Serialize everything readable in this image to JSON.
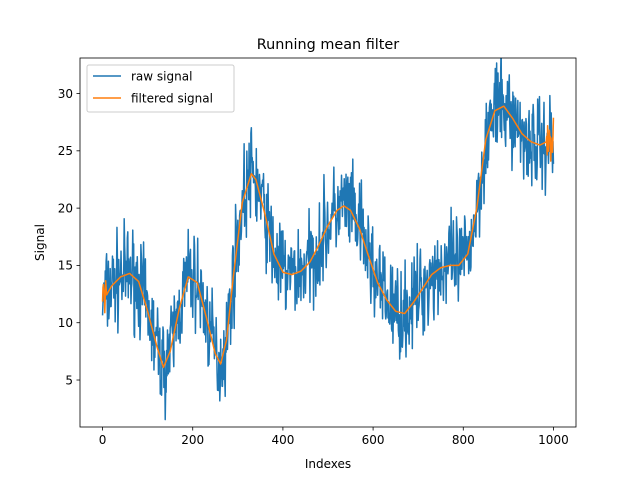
{
  "chart_data": {
    "type": "line",
    "title": "Running mean filter",
    "xlabel": "Indexes",
    "ylabel": "Signal",
    "xlim": [
      -50,
      1050
    ],
    "ylim": [
      0.9,
      33.1
    ],
    "xticks": [
      0,
      200,
      400,
      600,
      800,
      1000
    ],
    "yticks": [
      5,
      10,
      15,
      20,
      25,
      30
    ],
    "legend": {
      "placement": "top-left"
    },
    "grid": false,
    "series": [
      {
        "name": "raw signal",
        "color": "#1f77b4",
        "noise_amplitude": 2.0,
        "x": [
          0,
          20,
          40,
          60,
          80,
          100,
          120,
          135,
          150,
          170,
          190,
          210,
          230,
          250,
          262,
          275,
          290,
          310,
          330,
          340,
          360,
          380,
          400,
          420,
          440,
          460,
          480,
          500,
          520,
          535,
          550,
          570,
          590,
          610,
          630,
          650,
          670,
          690,
          710,
          730,
          750,
          770,
          790,
          810,
          830,
          850,
          870,
          890,
          910,
          930,
          950,
          970,
          985,
          995
        ],
        "y": [
          11.8,
          13.2,
          14.0,
          14.3,
          13.6,
          11.0,
          8.0,
          6.1,
          7.5,
          11.2,
          14.0,
          13.5,
          10.5,
          7.3,
          6.4,
          8.5,
          14.0,
          20.5,
          23.0,
          22.5,
          19.5,
          16.0,
          14.4,
          14.2,
          14.5,
          15.3,
          16.8,
          18.5,
          19.8,
          20.2,
          19.8,
          18.2,
          15.8,
          13.5,
          12.0,
          11.0,
          10.8,
          11.8,
          13.0,
          14.2,
          14.8,
          15.0,
          15.0,
          16.0,
          20.0,
          26.0,
          28.5,
          28.9,
          27.8,
          26.5,
          25.8,
          25.5,
          25.8,
          26.0
        ]
      },
      {
        "name": "filtered signal",
        "color": "#ff7f0e",
        "x": [
          0,
          20,
          40,
          60,
          80,
          100,
          120,
          135,
          150,
          170,
          190,
          210,
          230,
          250,
          262,
          275,
          290,
          310,
          330,
          340,
          360,
          380,
          400,
          420,
          440,
          460,
          480,
          500,
          520,
          535,
          550,
          570,
          590,
          610,
          630,
          650,
          670,
          690,
          710,
          730,
          750,
          770,
          790,
          810,
          830,
          850,
          870,
          890,
          910,
          930,
          950,
          970,
          985,
          995
        ],
        "y": [
          11.8,
          13.2,
          14.0,
          14.3,
          13.6,
          11.0,
          8.0,
          6.1,
          7.5,
          11.2,
          14.0,
          13.5,
          10.5,
          7.3,
          6.4,
          8.5,
          14.0,
          20.5,
          23.0,
          22.5,
          19.5,
          16.0,
          14.4,
          14.2,
          14.5,
          15.3,
          16.8,
          18.5,
          19.8,
          20.2,
          19.8,
          18.2,
          15.8,
          13.5,
          12.0,
          11.0,
          10.8,
          11.8,
          13.0,
          14.2,
          14.8,
          15.0,
          15.0,
          16.0,
          20.0,
          26.0,
          28.5,
          28.9,
          27.8,
          26.5,
          25.8,
          25.5,
          25.8,
          26.0
        ],
        "edge_artifacts": {
          "start": {
            "x_range": [
              0,
              8
            ],
            "y_range": [
              10.4,
              13.9
            ]
          },
          "end": {
            "x_range": [
              985,
              1000
            ],
            "y_range": [
              23.8,
              28.0
            ]
          }
        }
      }
    ]
  }
}
